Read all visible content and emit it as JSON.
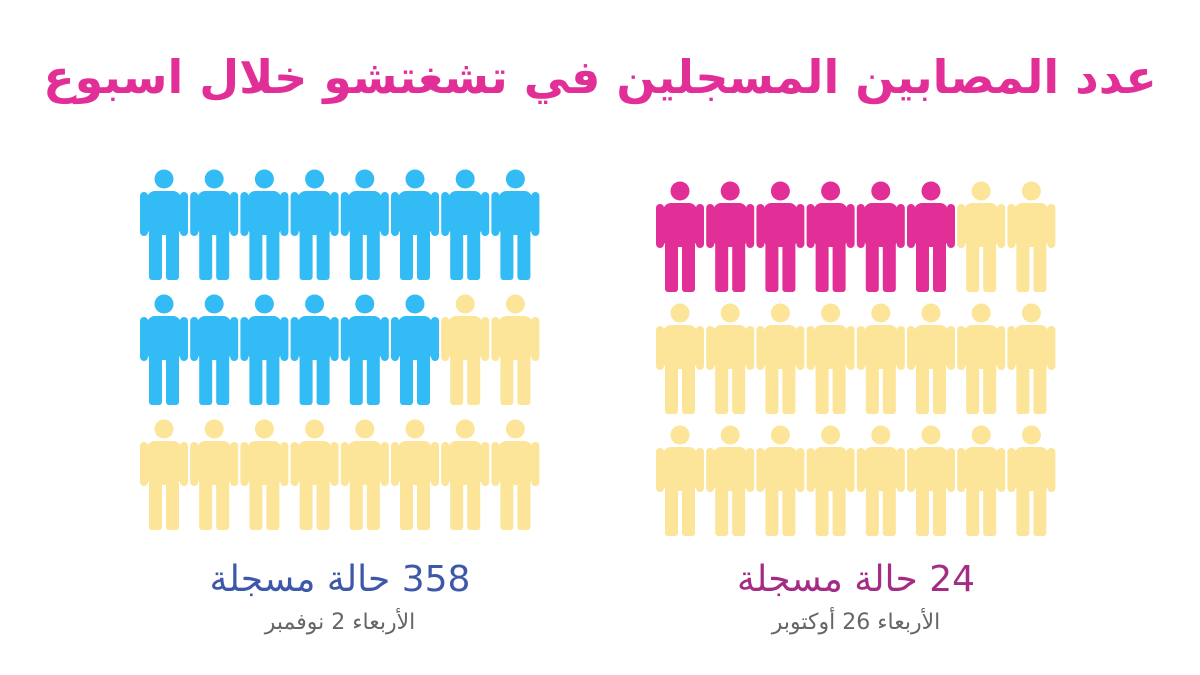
{
  "title": "عدد المصابين المسجلين في تشغتشو خلال اسبوع",
  "colors": {
    "title": "#e22f98",
    "left_active": "#33bbf5",
    "right_active": "#e22f98",
    "inactive": "#fce498",
    "left_caption": "#3d58a8",
    "right_caption": "#a32c86",
    "date_text": "#666666"
  },
  "chart_data": {
    "type": "pictogram",
    "grid": {
      "rows": 3,
      "columns": 8
    },
    "panels": [
      {
        "caption": "358 حالة مسجلة",
        "date": "الأربعاء 2 نوفمبر",
        "value": 358,
        "highlighted_icons": 14,
        "total_icons": 24
      },
      {
        "caption": "24 حالة مسجلة",
        "date": "الأربعاء 26 أوكتوبر",
        "value": 24,
        "highlighted_icons": 6,
        "total_icons": 24
      }
    ]
  }
}
